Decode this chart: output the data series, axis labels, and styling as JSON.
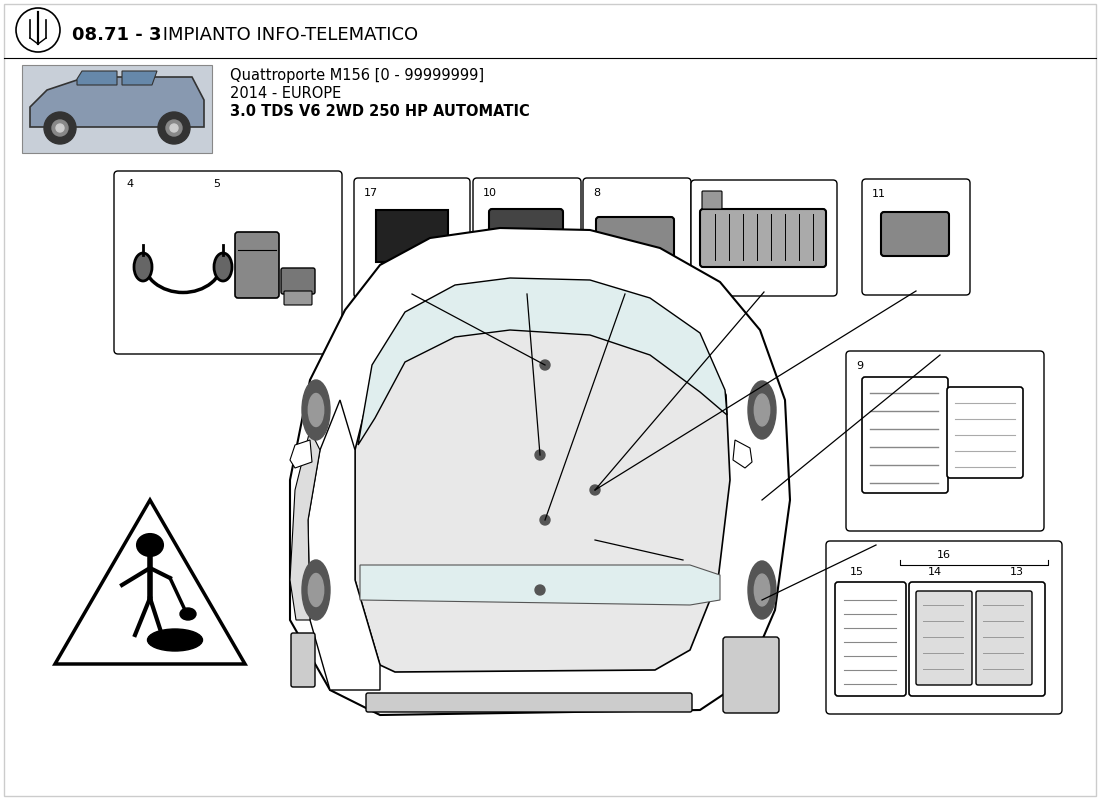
{
  "title_bold": "08.71 - 3",
  "title_rest": " IMPIANTO INFO-TELEMATICO",
  "subtitle_line1": "Quattroporte M156 [0 - 99999999]",
  "subtitle_line2": "2014 - EUROPE",
  "subtitle_line3": "3.0 TDS V6 2WD 250 HP AUTOMATIC",
  "bg_color": "#FFFFFF",
  "text_color": "#000000",
  "fig_width": 11.0,
  "fig_height": 8.0,
  "dpi": 100
}
